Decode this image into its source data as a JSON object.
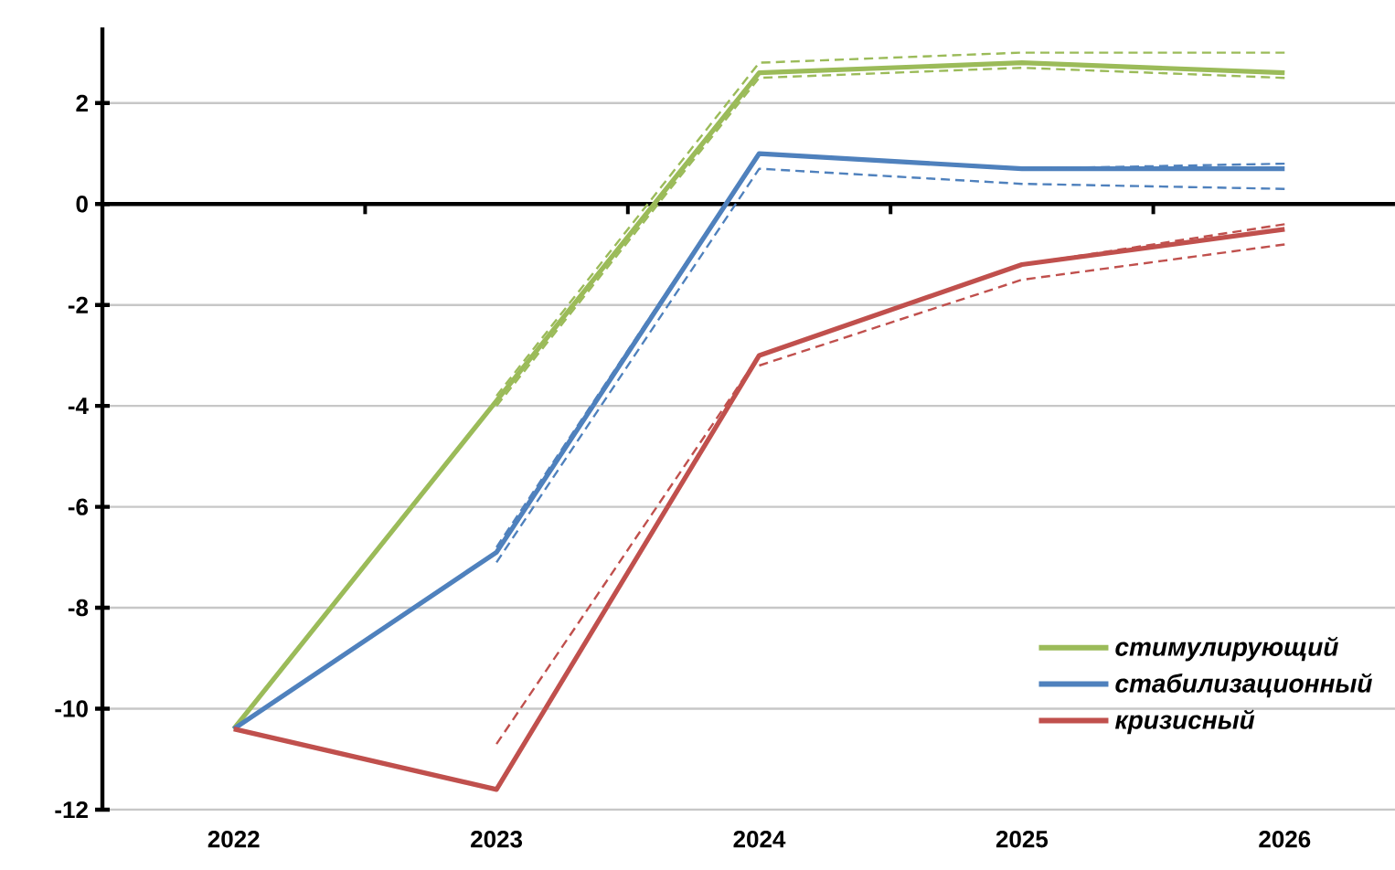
{
  "chart_data": {
    "type": "line",
    "categories": [
      "2022",
      "2023",
      "2024",
      "2025",
      "2026"
    ],
    "ylim": [
      -12,
      3.5
    ],
    "yticks": [
      -12,
      -10,
      -8,
      -6,
      -4,
      -2,
      0,
      2
    ],
    "grid": "y",
    "legend": "bottom right",
    "line_style": "solid",
    "marker": "none",
    "series": [
      {
        "name": "стимулирующий",
        "color": "#9bbb59",
        "values": [
          -10.4,
          -3.9,
          2.6,
          2.8,
          2.6
        ]
      },
      {
        "name": "стабилизационный",
        "color": "#4f81bd",
        "values": [
          -10.4,
          -6.9,
          1.0,
          0.7,
          0.7
        ]
      },
      {
        "name": "кризисный",
        "color": "#c0504d",
        "values": [
          -10.4,
          -11.6,
          -3.0,
          -1.2,
          -0.5
        ]
      },
      {
        "color": "#9bbb59",
        "line_style": "dashed",
        "values": [
          null,
          -3.8,
          2.8,
          3.0,
          3.0
        ]
      },
      {
        "color": "#9bbb59",
        "line_style": "dashed",
        "values": [
          null,
          -4.0,
          2.5,
          2.7,
          2.5
        ]
      },
      {
        "color": "#4f81bd",
        "line_style": "dashed",
        "values": [
          null,
          -6.8,
          1.0,
          0.7,
          0.8
        ]
      },
      {
        "color": "#4f81bd",
        "line_style": "dashed",
        "values": [
          null,
          -7.1,
          0.7,
          0.4,
          0.3
        ]
      },
      {
        "color": "#c0504d",
        "line_style": "dashed",
        "values": [
          null,
          -10.7,
          -3.0,
          -1.2,
          -0.4
        ]
      },
      {
        "color": "#c0504d",
        "line_style": "dashed",
        "values": [
          null,
          null,
          -3.2,
          -1.5,
          -0.8
        ]
      }
    ]
  }
}
